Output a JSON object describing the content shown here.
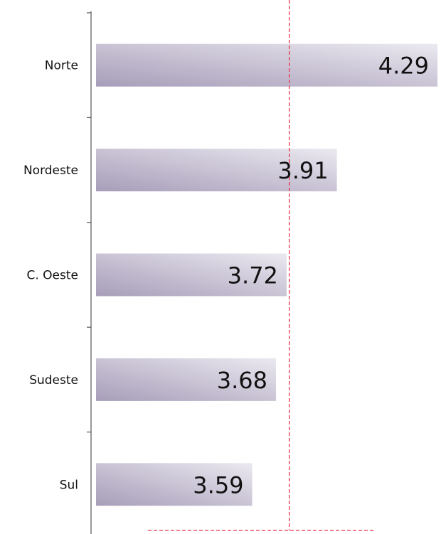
{
  "chart_data": {
    "type": "bar",
    "orientation": "horizontal",
    "categories": [
      "Norte",
      "Nordeste",
      "C. Oeste",
      "Sudeste",
      "Sul"
    ],
    "values": [
      4.29,
      3.91,
      3.72,
      3.68,
      3.59
    ],
    "value_labels": [
      "4.29",
      "3.91",
      "3.72",
      "3.68",
      "3.59"
    ],
    "title": "",
    "xlabel": "",
    "ylabel": "",
    "xlim": [
      3.0,
      4.29
    ],
    "reference_line": {
      "x": 3.73,
      "style": "dashed",
      "color": "#e8354a"
    },
    "legend": "none",
    "grid": false,
    "colors": {
      "bar_dark": "#a79db9",
      "bar_light": "#ebe9f0",
      "axis": "#555555"
    }
  }
}
